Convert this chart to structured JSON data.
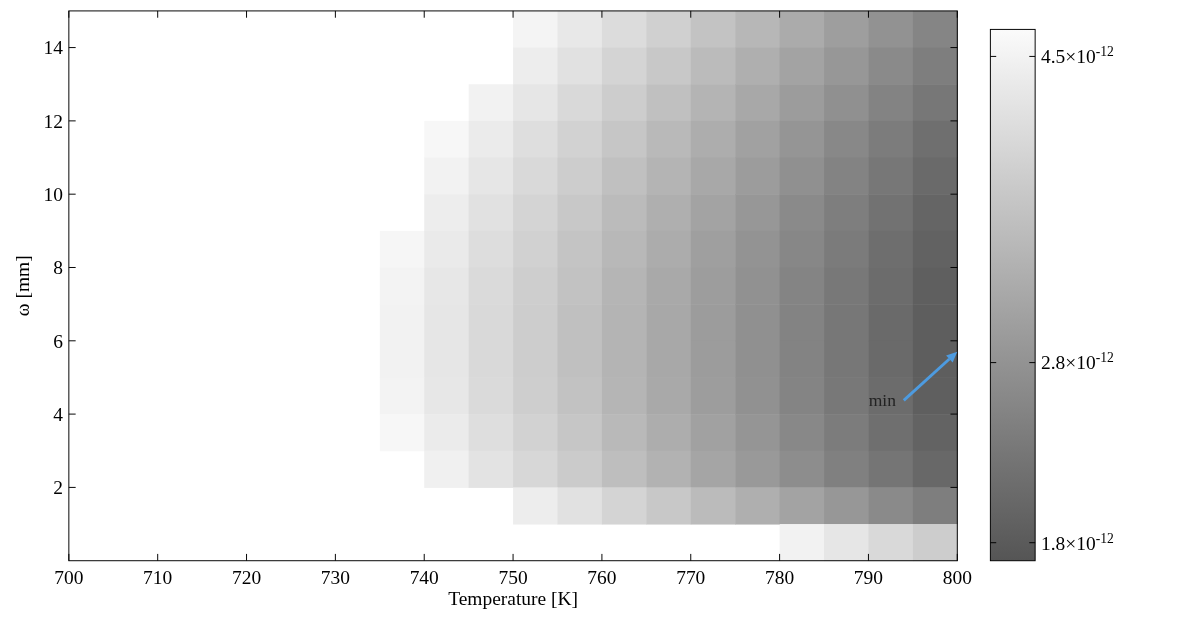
{
  "chart_data": {
    "type": "heatmap",
    "xlabel": "Temperature [K]",
    "ylabel": "ω [mm]",
    "xlim": [
      700,
      800
    ],
    "xticks": [
      700,
      710,
      720,
      730,
      740,
      750,
      760,
      770,
      780,
      790,
      800
    ],
    "ylim": [
      0,
      15
    ],
    "yticks": [
      2,
      4,
      6,
      8,
      10,
      12,
      14
    ],
    "clim": [
      1.7e-12,
      4.65e-12
    ],
    "cticks": [
      {
        "value": 1.8e-12,
        "label": "1.8×10$^{-12}$"
      },
      {
        "value": 2.8e-12,
        "label": "2.8×10$^{-12}$"
      },
      {
        "value": 4.5e-12,
        "label": "4.5×10$^{-12}$"
      }
    ],
    "annotations": [
      "min"
    ],
    "cells": [
      [
        null,
        null,
        null,
        null,
        null,
        null,
        null,
        null,
        null,
        null,
        4.53e-12,
        4.32e-12,
        4.1e-12,
        3.88e-12,
        3.66e-12,
        3.44e-12,
        3.22e-12,
        3e-12,
        2.78e-12,
        2.56e-12
      ],
      [
        null,
        null,
        null,
        null,
        null,
        null,
        null,
        null,
        null,
        null,
        4.4e-12,
        4.18e-12,
        3.96e-12,
        3.74e-12,
        3.52e-12,
        3.3e-12,
        3.08e-12,
        2.87e-12,
        2.65e-12,
        2.43e-12
      ],
      [
        null,
        null,
        null,
        null,
        null,
        null,
        null,
        null,
        null,
        4.49e-12,
        4.27e-12,
        4.05e-12,
        3.83e-12,
        3.61e-12,
        3.39e-12,
        3.17e-12,
        2.96e-12,
        2.74e-12,
        2.52e-12,
        2.3e-12
      ],
      [
        null,
        null,
        null,
        null,
        null,
        null,
        null,
        null,
        4.58e-12,
        4.36e-12,
        4.14e-12,
        3.92e-12,
        3.7e-12,
        3.48e-12,
        3.26e-12,
        3.05e-12,
        2.83e-12,
        2.61e-12,
        2.39e-12,
        2.17e-12
      ],
      [
        null,
        null,
        null,
        null,
        null,
        null,
        null,
        null,
        4.49e-12,
        4.27e-12,
        4.05e-12,
        3.83e-12,
        3.61e-12,
        3.39e-12,
        3.17e-12,
        2.96e-12,
        2.74e-12,
        2.52e-12,
        2.3e-12,
        2.08e-12
      ],
      [
        null,
        null,
        null,
        null,
        null,
        null,
        null,
        null,
        4.4e-12,
        4.18e-12,
        3.96e-12,
        3.74e-12,
        3.52e-12,
        3.3e-12,
        3.08e-12,
        2.87e-12,
        2.65e-12,
        2.43e-12,
        2.21e-12,
        1.99e-12
      ],
      [
        null,
        null,
        null,
        null,
        null,
        null,
        null,
        4.56e-12,
        4.34e-12,
        4.12e-12,
        3.9e-12,
        3.68e-12,
        3.46e-12,
        3.24e-12,
        3.02e-12,
        2.8e-12,
        2.58e-12,
        2.37e-12,
        2.15e-12,
        1.93e-12
      ],
      [
        null,
        null,
        null,
        null,
        null,
        null,
        null,
        4.51e-12,
        4.29e-12,
        4.07e-12,
        3.85e-12,
        3.63e-12,
        3.41e-12,
        3.19e-12,
        2.98e-12,
        2.76e-12,
        2.54e-12,
        2.32e-12,
        2.1e-12,
        1.88e-12
      ],
      [
        null,
        null,
        null,
        null,
        null,
        null,
        null,
        4.49e-12,
        4.27e-12,
        4.05e-12,
        3.83e-12,
        3.61e-12,
        3.39e-12,
        3.17e-12,
        2.96e-12,
        2.74e-12,
        2.52e-12,
        2.3e-12,
        2.08e-12,
        1.86e-12
      ],
      [
        null,
        null,
        null,
        null,
        null,
        null,
        null,
        4.49e-12,
        4.27e-12,
        4.05e-12,
        3.83e-12,
        3.61e-12,
        3.39e-12,
        3.17e-12,
        2.96e-12,
        2.74e-12,
        2.52e-12,
        2.3e-12,
        2.08e-12,
        1.86e-12
      ],
      [
        null,
        null,
        null,
        null,
        null,
        null,
        null,
        4.51e-12,
        4.29e-12,
        4.07e-12,
        3.85e-12,
        3.63e-12,
        3.41e-12,
        3.19e-12,
        2.98e-12,
        2.76e-12,
        2.54e-12,
        2.32e-12,
        2.1e-12,
        1.88e-12
      ],
      [
        null,
        null,
        null,
        null,
        null,
        null,
        null,
        4.58e-12,
        4.36e-12,
        4.14e-12,
        3.92e-12,
        3.7e-12,
        3.48e-12,
        3.26e-12,
        3.05e-12,
        2.83e-12,
        2.61e-12,
        2.39e-12,
        2.17e-12,
        1.95e-12
      ],
      [
        null,
        null,
        null,
        null,
        null,
        null,
        null,
        null,
        4.45e-12,
        4.23e-12,
        4.01e-12,
        3.79e-12,
        3.57e-12,
        3.35e-12,
        3.13e-12,
        2.91e-12,
        2.69e-12,
        2.47e-12,
        2.26e-12,
        2.04e-12
      ],
      [
        null,
        null,
        null,
        null,
        null,
        null,
        null,
        null,
        null,
        null,
        4.4e-12,
        4.18e-12,
        3.96e-12,
        3.74e-12,
        3.52e-12,
        3.3e-12,
        3.08e-12,
        2.87e-12,
        2.65e-12,
        2.43e-12
      ],
      [
        null,
        null,
        null,
        null,
        null,
        null,
        null,
        null,
        null,
        null,
        null,
        null,
        null,
        null,
        null,
        null,
        4.49e-12,
        4.27e-12,
        4.05e-12,
        3.83e-12
      ]
    ]
  }
}
